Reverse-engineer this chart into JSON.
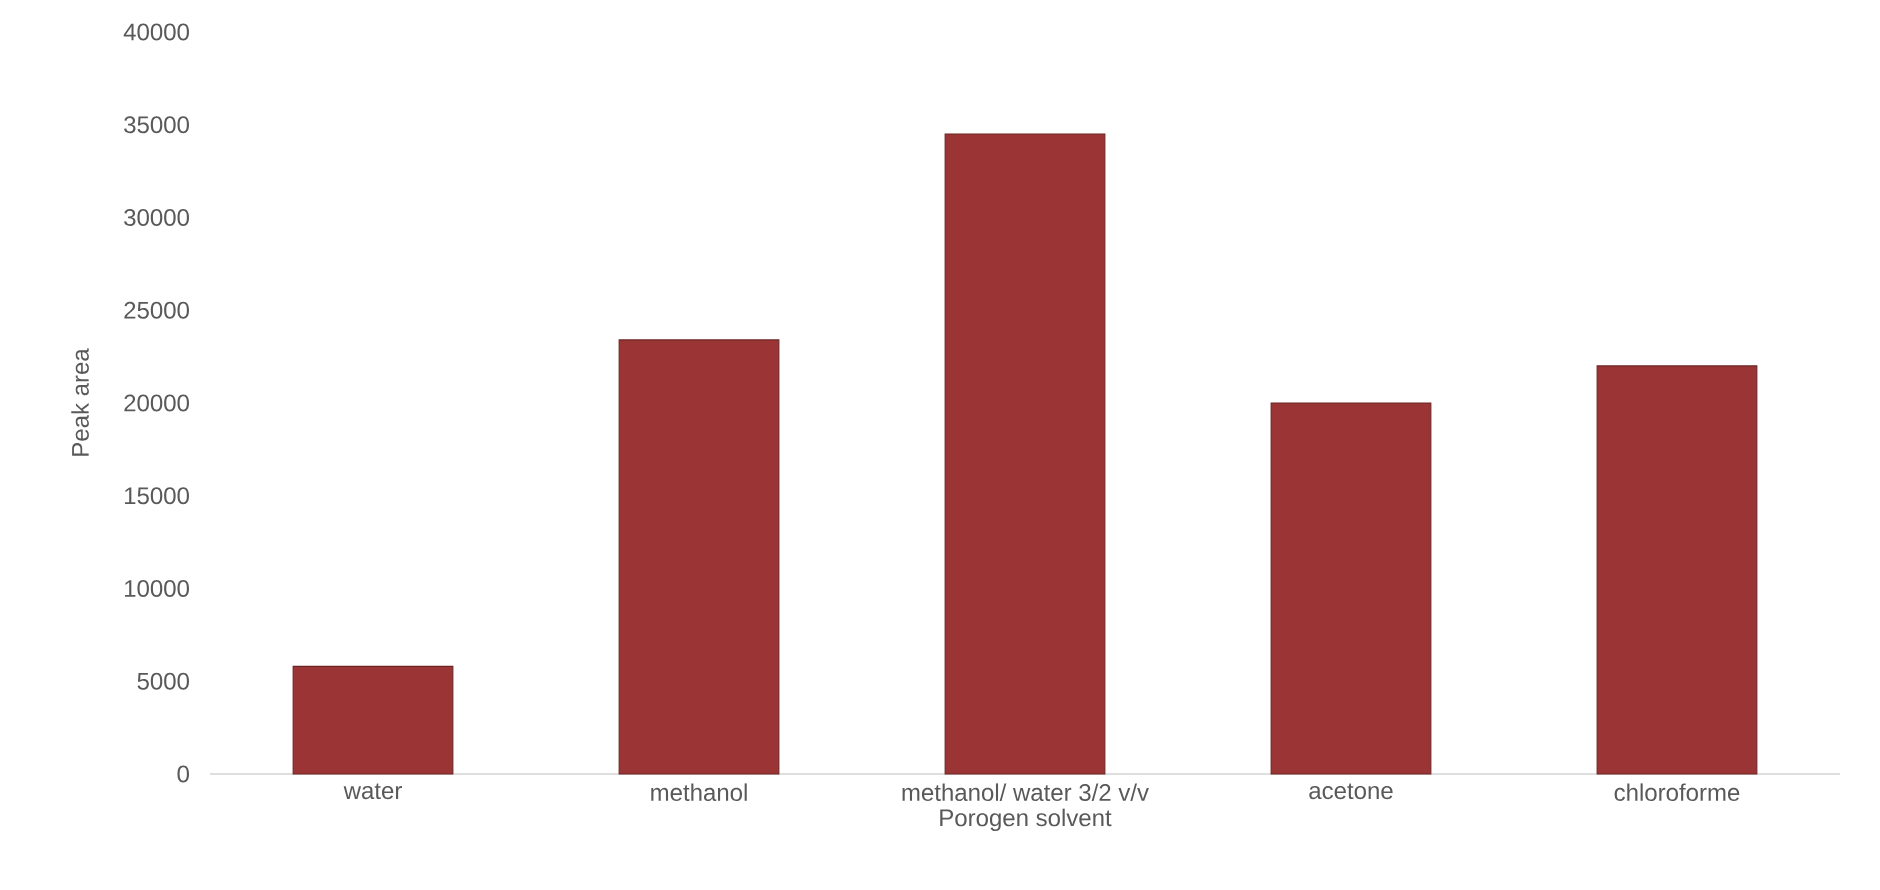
{
  "chart_data": {
    "type": "bar",
    "xlabel": "Porogen solvent",
    "ylabel": "Peak area",
    "categories": [
      "water",
      "methanol",
      "methanol/ water 3/2 v/v",
      "acetone",
      "chloroforme"
    ],
    "values": [
      5800,
      23400,
      34500,
      20000,
      22000
    ],
    "color": "#9b3535",
    "ylim": [
      0,
      40000
    ],
    "yticks": [
      0,
      5000,
      10000,
      15000,
      20000,
      25000,
      30000,
      35000,
      40000
    ]
  }
}
